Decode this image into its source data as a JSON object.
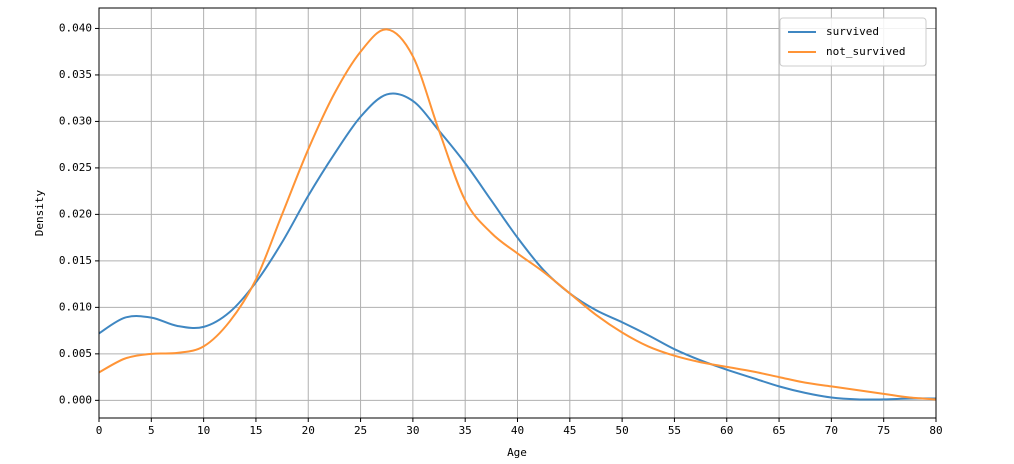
{
  "chart_data": {
    "type": "line",
    "x_label": "Age",
    "y_label": "Density",
    "x": [
      0,
      2.5,
      5,
      7.5,
      10,
      12.5,
      15,
      17.5,
      20,
      22.5,
      25,
      27.5,
      30,
      32.5,
      35,
      37.5,
      40,
      42.5,
      45,
      47.5,
      50,
      52.5,
      55,
      57.5,
      60,
      62.5,
      65,
      67.5,
      70,
      72.5,
      75,
      77.5,
      80
    ],
    "series": [
      {
        "name": "survived",
        "color": "#3f87c2",
        "values": [
          0.0072,
          0.0089,
          0.0089,
          0.008,
          0.0079,
          0.0095,
          0.0127,
          0.017,
          0.022,
          0.0265,
          0.0305,
          0.0329,
          0.0322,
          0.029,
          0.0255,
          0.0215,
          0.0175,
          0.014,
          0.0115,
          0.0097,
          0.0084,
          0.007,
          0.0055,
          0.0043,
          0.0033,
          0.0024,
          0.0015,
          0.0008,
          0.0003,
          0.0001,
          0.0001,
          0.0002,
          0.0002
        ]
      },
      {
        "name": "not_survived",
        "color": "#ff9436",
        "values": [
          0.003,
          0.0045,
          0.005,
          0.0051,
          0.0058,
          0.0085,
          0.013,
          0.02,
          0.027,
          0.033,
          0.0375,
          0.0399,
          0.037,
          0.029,
          0.0215,
          0.018,
          0.0158,
          0.0138,
          0.0115,
          0.0092,
          0.0073,
          0.0058,
          0.0048,
          0.0041,
          0.0036,
          0.0031,
          0.0025,
          0.0019,
          0.0015,
          0.0011,
          0.0007,
          0.0003,
          0.0001
        ]
      }
    ],
    "xlim": [
      0,
      80
    ],
    "xticks": [
      0,
      5,
      10,
      15,
      20,
      25,
      30,
      35,
      40,
      45,
      50,
      55,
      60,
      65,
      70,
      75,
      80
    ],
    "ylim": [
      -0.0019,
      0.0422
    ],
    "yticks": [
      {
        "value": 0,
        "label": "0.000"
      },
      {
        "value": 0.005,
        "label": "0.005"
      },
      {
        "value": 0.01,
        "label": "0.010"
      },
      {
        "value": 0.015,
        "label": "0.015"
      },
      {
        "value": 0.02,
        "label": "0.020"
      },
      {
        "value": 0.025,
        "label": "0.025"
      },
      {
        "value": 0.03,
        "label": "0.030"
      },
      {
        "value": 0.035,
        "label": "0.035"
      },
      {
        "value": 0.04,
        "label": "0.040"
      }
    ],
    "grid": true,
    "legend": "upper right"
  }
}
